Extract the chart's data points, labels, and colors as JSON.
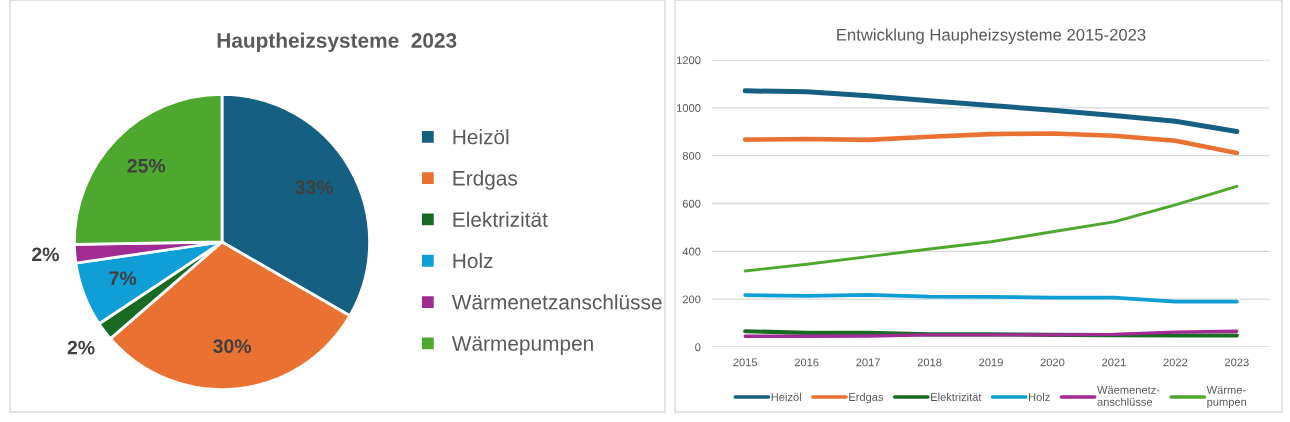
{
  "chart_data": [
    {
      "type": "pie",
      "title": "Hauptheizsysteme  2023",
      "categories": [
        "Heizöl",
        "Erdgas",
        "Elektrizität",
        "Holz",
        "Wärmenetzanschlüsse",
        "Wärmepumpen"
      ],
      "values": [
        33,
        30,
        2,
        7,
        2,
        25
      ],
      "colors": [
        "#156082",
        "#e97132",
        "#196b24",
        "#0f9ed5",
        "#a02b93",
        "#4ea72e"
      ],
      "value_labels": [
        "33%",
        "30%",
        "2%",
        "7%",
        "2%",
        "25%"
      ],
      "legend": "right"
    },
    {
      "type": "line",
      "title": "Entwicklung Haupheizsysteme 2015-2023",
      "categories": [
        "2015",
        "2016",
        "2017",
        "2018",
        "2019",
        "2020",
        "2021",
        "2022",
        "2023"
      ],
      "ylim": [
        0,
        1200
      ],
      "yticks": [
        0,
        200,
        400,
        600,
        800,
        1000,
        1200
      ],
      "grid": "y",
      "legend": "bottom",
      "series": [
        {
          "name": "Heizöl",
          "color": "#156082",
          "values": [
            1071,
            1067,
            1051,
            1030,
            1010,
            990,
            968,
            944,
            901
          ]
        },
        {
          "name": "Erdgas",
          "color": "#e97132",
          "values": [
            867,
            870,
            866,
            879,
            890,
            893,
            883,
            862,
            811
          ]
        },
        {
          "name": "Elektrizität",
          "color": "#196b24",
          "values": [
            66,
            59,
            59,
            53,
            53,
            51,
            50,
            48,
            48
          ]
        },
        {
          "name": "Holz",
          "color": "#0f9ed5",
          "values": [
            217,
            214,
            218,
            211,
            210,
            206,
            206,
            190,
            190
          ]
        },
        {
          "name": "Wäemenetz-\nanschlüsse",
          "color": "#a02b93",
          "values": [
            45,
            45,
            46,
            51,
            51,
            51,
            53,
            62,
            66
          ]
        },
        {
          "name": "Wärme-\npumpen",
          "color": "#4ea72e",
          "values": [
            318,
            346,
            378,
            410,
            440,
            482,
            523,
            594,
            672
          ]
        }
      ]
    }
  ]
}
